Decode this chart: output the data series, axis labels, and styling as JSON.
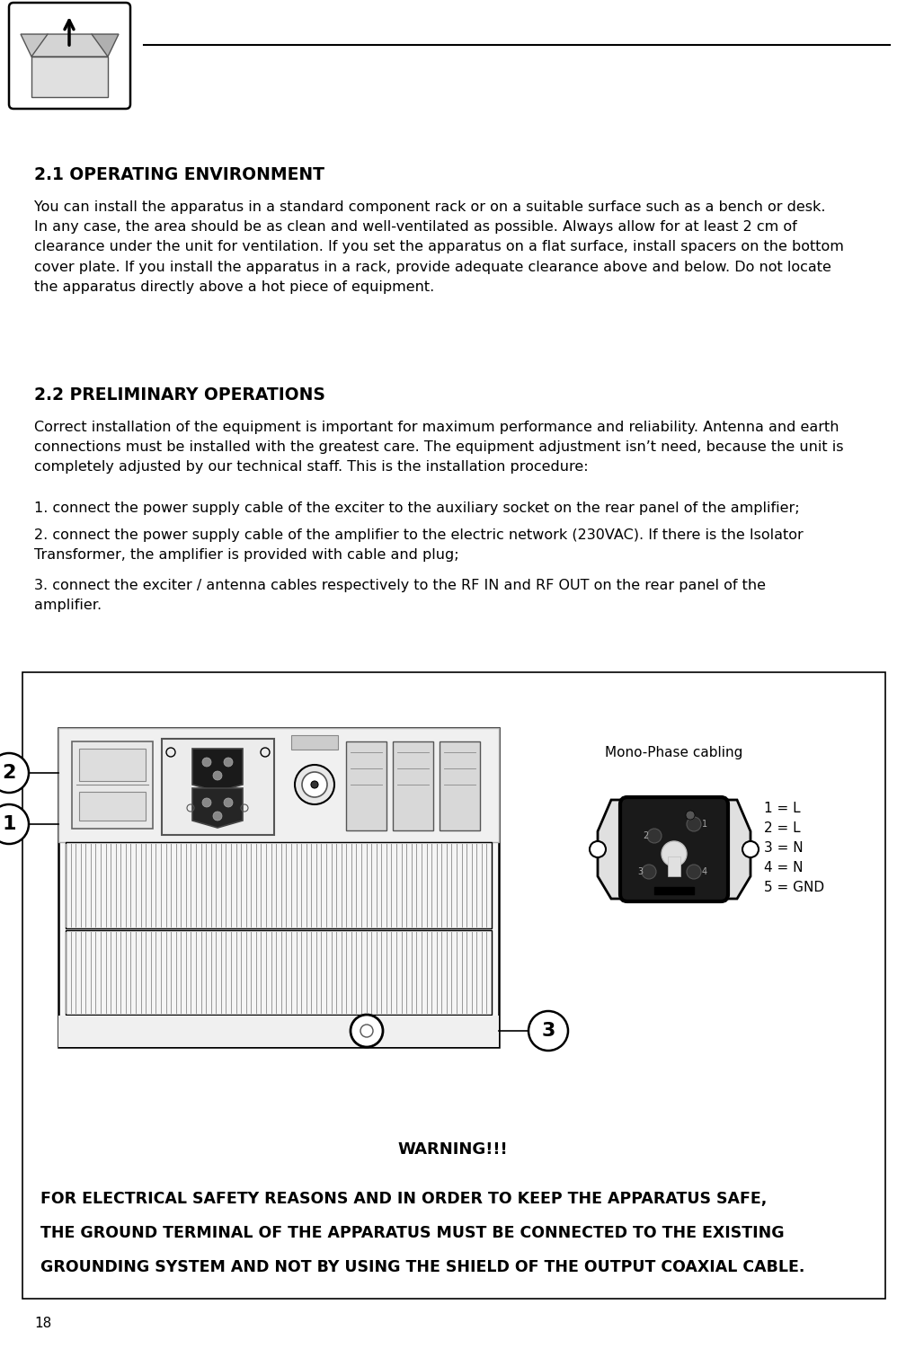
{
  "bg_color": "#ffffff",
  "page_number": "18",
  "section1_title": "2.1 OPERATING ENVIRONMENT",
  "section1_body": "You can install the apparatus in a standard component rack or on a suitable surface such as a bench or desk.\nIn any case, the area should be as clean and well-ventilated as possible. Always allow for at least 2 cm of\nclearance under the unit for ventilation. If you set the apparatus on a flat surface, install spacers on the bottom\ncover plate. If you install the apparatus in a rack, provide adequate clearance above and below. Do not locate\nthe apparatus directly above a hot piece of equipment.",
  "section2_title": "2.2 PRELIMINARY OPERATIONS",
  "section2_body": "Correct installation of the equipment is important for maximum performance and reliability. Antenna and earth\nconnections must be installed with the greatest care. The equipment adjustment isn’t need, because the unit is\ncompletely adjusted by our technical staff. This is the installation procedure:",
  "step1": "1. connect the power supply cable of the exciter to the auxiliary socket on the rear panel of the amplifier;",
  "step2": "2. connect the power supply cable of the amplifier to the electric network (230VAC). If there is the Isolator\nTransformer, the amplifier is provided with cable and plug;",
  "step3": "3. connect the exciter / antenna cables respectively to the RF IN and RF OUT on the rear panel of the\namplifier.",
  "warning_title": "WARNING!!!",
  "warning_line1": "FOR ELECTRICAL SAFETY REASONS AND IN ORDER TO KEEP THE APPARATUS SAFE,",
  "warning_line2": "THE GROUND TERMINAL OF THE APPARATUS MUST BE CONNECTED TO THE EXISTING",
  "warning_line3": "GROUNDING SYSTEM AND NOT BY USING THE SHIELD OF THE OUTPUT COAXIAL CABLE.",
  "mono_phase_label": "Mono-Phase cabling",
  "connector_labels": [
    "1 = L",
    "2 = L",
    "3 = N",
    "4 = N",
    "5 = GND"
  ]
}
